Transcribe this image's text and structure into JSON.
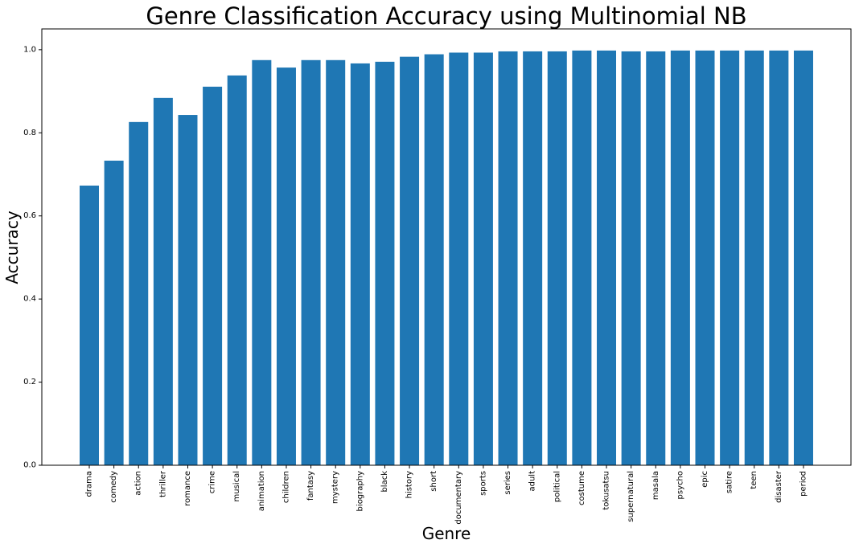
{
  "chart_data": {
    "type": "bar",
    "title": "Genre Classification Accuracy using Multinomial NB",
    "xlabel": "Genre",
    "ylabel": "Accuracy",
    "ylim": [
      0,
      1.05
    ],
    "yticks": [
      "0.0",
      "0.2",
      "0.4",
      "0.6",
      "0.8",
      "1.0"
    ],
    "grid": false,
    "bar_color": "#1f77b4",
    "categories": [
      "drama",
      "comedy",
      "action",
      "thriller",
      "romance",
      "crime",
      "musical",
      "animation",
      "children",
      "fantasy",
      "mystery",
      "biography",
      "black",
      "history",
      "short",
      "documentary",
      "sports",
      "series",
      "adult",
      "political",
      "costume",
      "tokusatsu",
      "supernatural",
      "masala",
      "psycho",
      "epic",
      "satire",
      "teen",
      "disaster",
      "period"
    ],
    "values": [
      0.673,
      0.733,
      0.826,
      0.884,
      0.843,
      0.911,
      0.938,
      0.975,
      0.957,
      0.975,
      0.975,
      0.967,
      0.971,
      0.983,
      0.989,
      0.993,
      0.993,
      0.996,
      0.996,
      0.996,
      0.998,
      0.998,
      0.996,
      0.996,
      0.998,
      0.998,
      0.998,
      0.998,
      0.998,
      0.998
    ]
  }
}
